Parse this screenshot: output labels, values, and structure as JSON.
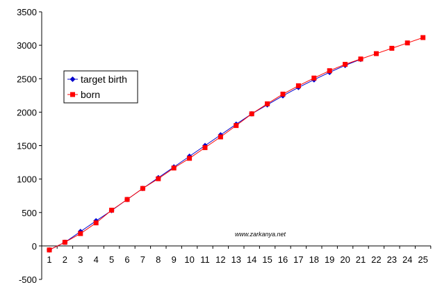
{
  "chart_data": {
    "type": "line",
    "title": "",
    "xlabel": "",
    "ylabel": "",
    "categories": [
      "1",
      "2",
      "3",
      "4",
      "5",
      "6",
      "7",
      "8",
      "9",
      "10",
      "11",
      "12",
      "13",
      "14",
      "15",
      "16",
      "17",
      "18",
      "19",
      "20",
      "21",
      "22",
      "23",
      "24",
      "25"
    ],
    "ylim": [
      -500,
      3500
    ],
    "yticks": [
      "-500",
      "0",
      "500",
      "1000",
      "1500",
      "2000",
      "2500",
      "3000",
      "3500"
    ],
    "grid": false,
    "legend_position": "left",
    "series": [
      {
        "name": "target birth",
        "color": "#0000CC",
        "marker": "diamond",
        "values": [
          -60,
          55,
          215,
          375,
          530,
          695,
          860,
          1020,
          1180,
          1340,
          1500,
          1660,
          1820,
          1975,
          2110,
          2245,
          2370,
          2485,
          2595,
          2700,
          2790,
          null,
          null,
          null,
          null
        ]
      },
      {
        "name": "born",
        "color": "#FF0000",
        "marker": "square",
        "values": [
          -60,
          55,
          185,
          345,
          535,
          695,
          860,
          1005,
          1165,
          1310,
          1470,
          1630,
          1800,
          1975,
          2125,
          2270,
          2395,
          2510,
          2620,
          2715,
          2795,
          2875,
          2955,
          3035,
          3115
        ]
      }
    ],
    "annotation": "www.zarkanya.net"
  }
}
